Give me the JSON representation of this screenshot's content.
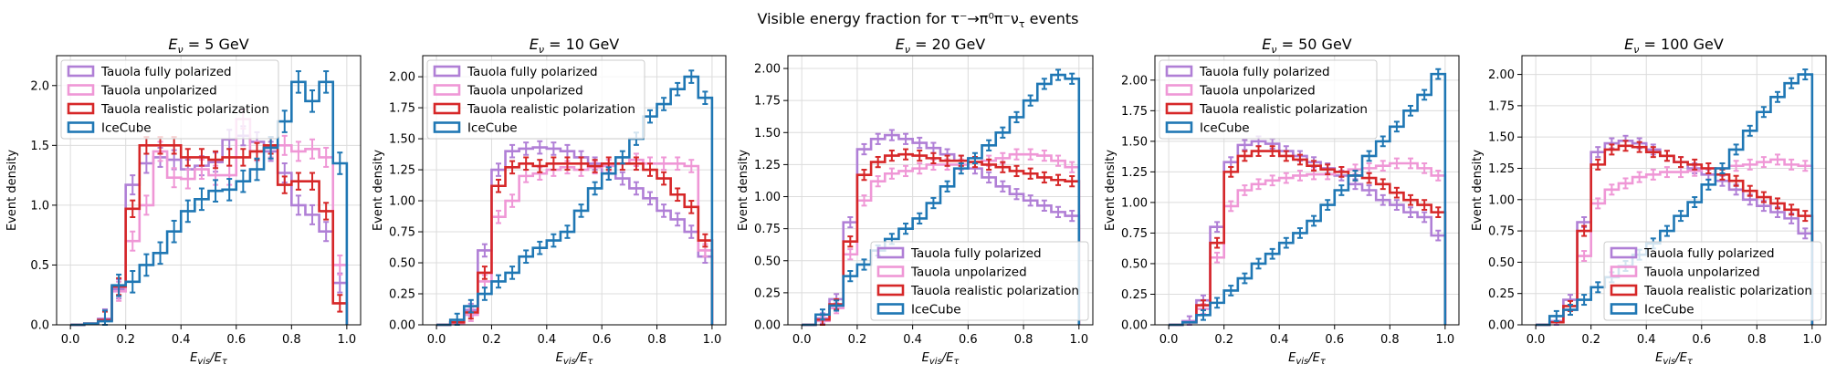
{
  "figure": {
    "suptitle_text": "Visible energy fraction for τ⁻→π⁰π⁻ν",
    "suptitle_sub": "τ",
    "suptitle_tail": " events"
  },
  "colors": {
    "tauola_fully_polarized": "#b07fd6",
    "tauola_unpolarized": "#ef97d6",
    "tauola_realistic": "#d62728",
    "icecube": "#1f77b4"
  },
  "chart_data": [
    {
      "type": "step-histogram",
      "title_main": "E",
      "title_sub": "ν",
      "title_tail": " = 5 GeV",
      "xlabel_main": "E",
      "xlabel_sub1": "vis",
      "xlabel_mid": "/E",
      "xlabel_sub2": "τ",
      "ylabel": "Event density",
      "xlim": [
        -0.05,
        1.05
      ],
      "ylim": [
        0,
        2.25
      ],
      "xticks": [
        "0.0",
        "0.2",
        "0.4",
        "0.6",
        "0.8",
        "1.0"
      ],
      "yticks": [
        "0.0",
        "0.5",
        "1.0",
        "1.5",
        "2.0"
      ],
      "ytick_values": [
        0,
        0.5,
        1.0,
        1.5,
        2.0
      ],
      "legend_loc": "upper left",
      "bin_edges": [
        0.0,
        0.05,
        0.1,
        0.15,
        0.2,
        0.25,
        0.3,
        0.35,
        0.4,
        0.45,
        0.5,
        0.55,
        0.6,
        0.65,
        0.7,
        0.75,
        0.8,
        0.85,
        0.9,
        0.95,
        1.0
      ],
      "series": [
        {
          "name": "Tauola fully polarized",
          "key": "tauola_fully_polarized",
          "values": [
            0,
            0.01,
            0.05,
            0.3,
            1.17,
            1.35,
            1.4,
            1.38,
            1.3,
            1.33,
            1.36,
            1.55,
            1.58,
            1.53,
            1.45,
            1.27,
            1.0,
            0.92,
            0.78,
            0.35
          ],
          "err": 0.08
        },
        {
          "name": "Tauola unpolarized",
          "key": "tauola_unpolarized",
          "values": [
            0,
            0.01,
            0.04,
            0.28,
            0.7,
            1.0,
            1.45,
            1.23,
            1.22,
            1.3,
            1.25,
            1.25,
            1.72,
            1.45,
            1.48,
            1.5,
            1.45,
            1.47,
            1.4,
            0.5
          ],
          "err": 0.08
        },
        {
          "name": "Tauola realistic polarization",
          "key": "tauola_realistic",
          "values": [
            0,
            0.01,
            0.04,
            0.32,
            0.97,
            1.5,
            1.5,
            1.5,
            1.4,
            1.4,
            1.38,
            1.4,
            1.4,
            1.45,
            1.5,
            1.17,
            1.2,
            1.2,
            0.95,
            0.18
          ],
          "err": 0.07
        },
        {
          "name": "IceCube",
          "key": "icecube",
          "values": [
            0,
            0.01,
            0.03,
            0.33,
            0.36,
            0.5,
            0.6,
            0.78,
            0.95,
            1.05,
            1.12,
            1.13,
            1.2,
            1.3,
            1.48,
            1.7,
            2.03,
            1.87,
            2.03,
            1.35
          ],
          "err": 0.09
        }
      ]
    },
    {
      "type": "step-histogram",
      "title_main": "E",
      "title_sub": "ν",
      "title_tail": " = 10 GeV",
      "xlabel_main": "E",
      "xlabel_sub1": "vis",
      "xlabel_mid": "/E",
      "xlabel_sub2": "τ",
      "ylabel": "Event density",
      "xlim": [
        -0.05,
        1.05
      ],
      "ylim": [
        0,
        2.17
      ],
      "xticks": [
        "0.0",
        "0.2",
        "0.4",
        "0.6",
        "0.8",
        "1.0"
      ],
      "yticks": [
        "0.00",
        "0.25",
        "0.50",
        "0.75",
        "1.00",
        "1.25",
        "1.50",
        "1.75",
        "2.00"
      ],
      "ytick_values": [
        0,
        0.25,
        0.5,
        0.75,
        1.0,
        1.25,
        1.5,
        1.75,
        2.0
      ],
      "legend_loc": "upper left",
      "bin_edges": [
        0.0,
        0.05,
        0.1,
        0.15,
        0.2,
        0.25,
        0.3,
        0.35,
        0.4,
        0.45,
        0.5,
        0.55,
        0.6,
        0.65,
        0.7,
        0.75,
        0.8,
        0.85,
        0.9,
        0.95,
        1.0
      ],
      "series": [
        {
          "name": "Tauola fully polarized",
          "key": "tauola_fully_polarized",
          "values": [
            0,
            0.02,
            0.12,
            0.6,
            1.25,
            1.4,
            1.42,
            1.43,
            1.42,
            1.4,
            1.35,
            1.3,
            1.22,
            1.18,
            1.1,
            1.02,
            0.92,
            0.85,
            0.75,
            0.55
          ],
          "err": 0.05
        },
        {
          "name": "Tauola unpolarized",
          "key": "tauola_unpolarized",
          "values": [
            0,
            0.01,
            0.08,
            0.35,
            0.87,
            1.0,
            1.2,
            1.22,
            1.25,
            1.27,
            1.25,
            1.27,
            1.28,
            1.3,
            1.33,
            1.3,
            1.3,
            1.3,
            1.28,
            0.6
          ],
          "err": 0.05
        },
        {
          "name": "Tauola realistic polarization",
          "key": "tauola_realistic",
          "values": [
            0,
            0.02,
            0.1,
            0.42,
            1.12,
            1.27,
            1.3,
            1.28,
            1.3,
            1.3,
            1.3,
            1.28,
            1.3,
            1.3,
            1.3,
            1.25,
            1.18,
            1.05,
            0.95,
            0.68
          ],
          "err": 0.05
        },
        {
          "name": "IceCube",
          "key": "icecube",
          "values": [
            0,
            0.04,
            0.15,
            0.25,
            0.35,
            0.42,
            0.55,
            0.62,
            0.68,
            0.75,
            0.92,
            1.1,
            1.22,
            1.35,
            1.5,
            1.68,
            1.78,
            1.9,
            2.0,
            1.83
          ],
          "err": 0.05
        }
      ]
    },
    {
      "type": "step-histogram",
      "title_main": "E",
      "title_sub": "ν",
      "title_tail": " = 20 GeV",
      "xlabel_main": "E",
      "xlabel_sub1": "vis",
      "xlabel_mid": "/E",
      "xlabel_sub2": "τ",
      "ylabel": "Event density",
      "xlim": [
        -0.05,
        1.05
      ],
      "ylim": [
        0,
        2.1
      ],
      "xticks": [
        "0.0",
        "0.2",
        "0.4",
        "0.6",
        "0.8",
        "1.0"
      ],
      "yticks": [
        "0.00",
        "0.25",
        "0.50",
        "0.75",
        "1.00",
        "1.25",
        "1.50",
        "1.75",
        "2.00"
      ],
      "ytick_values": [
        0,
        0.25,
        0.5,
        0.75,
        1.0,
        1.25,
        1.5,
        1.75,
        2.0
      ],
      "legend_loc": "lower right",
      "bin_edges": [
        0.0,
        0.05,
        0.1,
        0.15,
        0.2,
        0.25,
        0.3,
        0.35,
        0.4,
        0.45,
        0.5,
        0.55,
        0.6,
        0.65,
        0.7,
        0.75,
        0.8,
        0.85,
        0.9,
        0.95,
        1.0
      ],
      "series": [
        {
          "name": "Tauola fully polarized",
          "key": "tauola_fully_polarized",
          "values": [
            0,
            0.05,
            0.2,
            0.8,
            1.37,
            1.45,
            1.48,
            1.45,
            1.42,
            1.38,
            1.33,
            1.28,
            1.22,
            1.15,
            1.08,
            1.02,
            0.97,
            0.93,
            0.88,
            0.85
          ],
          "err": 0.04
        },
        {
          "name": "Tauola unpolarized",
          "key": "tauola_unpolarized",
          "values": [
            0,
            0.03,
            0.13,
            0.55,
            0.97,
            1.12,
            1.18,
            1.2,
            1.22,
            1.25,
            1.25,
            1.25,
            1.27,
            1.28,
            1.3,
            1.33,
            1.33,
            1.32,
            1.28,
            1.23
          ],
          "err": 0.04
        },
        {
          "name": "Tauola realistic polarization",
          "key": "tauola_realistic",
          "values": [
            0,
            0.04,
            0.16,
            0.65,
            1.17,
            1.27,
            1.32,
            1.33,
            1.32,
            1.3,
            1.28,
            1.28,
            1.27,
            1.25,
            1.23,
            1.2,
            1.18,
            1.15,
            1.13,
            1.12
          ],
          "err": 0.04
        },
        {
          "name": "IceCube",
          "key": "icecube",
          "values": [
            0,
            0.08,
            0.15,
            0.38,
            0.47,
            0.58,
            0.67,
            0.75,
            0.83,
            0.95,
            1.08,
            1.22,
            1.3,
            1.4,
            1.5,
            1.62,
            1.75,
            1.88,
            1.95,
            1.92
          ],
          "err": 0.04
        }
      ]
    },
    {
      "type": "step-histogram",
      "title_main": "E",
      "title_sub": "ν",
      "title_tail": " = 50 GeV",
      "xlabel_main": "E",
      "xlabel_sub1": "vis",
      "xlabel_mid": "/E",
      "xlabel_sub2": "τ",
      "ylabel": "Event density",
      "xlim": [
        -0.05,
        1.05
      ],
      "ylim": [
        0,
        2.2
      ],
      "xticks": [
        "0.0",
        "0.2",
        "0.4",
        "0.6",
        "0.8",
        "1.0"
      ],
      "yticks": [
        "0.00",
        "0.25",
        "0.50",
        "0.75",
        "1.00",
        "1.25",
        "1.50",
        "1.75",
        "2.00"
      ],
      "ytick_values": [
        0,
        0.25,
        0.5,
        0.75,
        1.0,
        1.25,
        1.5,
        1.75,
        2.0
      ],
      "legend_loc": "upper left",
      "bin_edges": [
        0.0,
        0.05,
        0.1,
        0.15,
        0.2,
        0.25,
        0.3,
        0.35,
        0.4,
        0.45,
        0.5,
        0.55,
        0.6,
        0.65,
        0.7,
        0.75,
        0.8,
        0.85,
        0.9,
        0.95,
        1.0
      ],
      "series": [
        {
          "name": "Tauola fully polarized",
          "key": "tauola_fully_polarized",
          "values": [
            0,
            0.03,
            0.2,
            0.8,
            1.33,
            1.47,
            1.5,
            1.48,
            1.42,
            1.38,
            1.33,
            1.28,
            1.22,
            1.15,
            1.1,
            1.02,
            0.98,
            0.92,
            0.88,
            0.73
          ],
          "err": 0.04
        },
        {
          "name": "Tauola unpolarized",
          "key": "tauola_unpolarized",
          "values": [
            0,
            0.02,
            0.13,
            0.55,
            0.97,
            1.1,
            1.15,
            1.18,
            1.2,
            1.22,
            1.23,
            1.23,
            1.25,
            1.27,
            1.28,
            1.3,
            1.32,
            1.32,
            1.28,
            1.22
          ],
          "err": 0.04
        },
        {
          "name": "Tauola realistic polarization",
          "key": "tauola_realistic",
          "values": [
            0,
            0.02,
            0.16,
            0.67,
            1.25,
            1.38,
            1.42,
            1.42,
            1.38,
            1.35,
            1.3,
            1.27,
            1.25,
            1.22,
            1.2,
            1.15,
            1.08,
            1.02,
            0.98,
            0.92
          ],
          "err": 0.04
        },
        {
          "name": "IceCube",
          "key": "icecube",
          "values": [
            0,
            0.02,
            0.08,
            0.18,
            0.28,
            0.38,
            0.5,
            0.58,
            0.67,
            0.75,
            0.85,
            0.98,
            1.1,
            1.22,
            1.38,
            1.5,
            1.62,
            1.75,
            1.88,
            2.05
          ],
          "err": 0.04
        }
      ]
    },
    {
      "type": "step-histogram",
      "title_main": "E",
      "title_sub": "ν",
      "title_tail": " = 100 GeV",
      "xlabel_main": "E",
      "xlabel_sub1": "vis",
      "xlabel_mid": "/E",
      "xlabel_sub2": "τ",
      "ylabel": "Event density",
      "xlim": [
        -0.05,
        1.05
      ],
      "ylim": [
        0,
        2.15
      ],
      "xticks": [
        "0.0",
        "0.2",
        "0.4",
        "0.6",
        "0.8",
        "1.0"
      ],
      "yticks": [
        "0.00",
        "0.25",
        "0.50",
        "0.75",
        "1.00",
        "1.25",
        "1.50",
        "1.75",
        "2.00"
      ],
      "ytick_values": [
        0,
        0.25,
        0.5,
        0.75,
        1.0,
        1.25,
        1.5,
        1.75,
        2.0
      ],
      "legend_loc": "lower right",
      "bin_edges": [
        0.0,
        0.05,
        0.1,
        0.15,
        0.2,
        0.25,
        0.3,
        0.35,
        0.4,
        0.45,
        0.5,
        0.55,
        0.6,
        0.65,
        0.7,
        0.75,
        0.8,
        0.85,
        0.9,
        0.95,
        1.0
      ],
      "series": [
        {
          "name": "Tauola fully polarized",
          "key": "tauola_fully_polarized",
          "values": [
            0,
            0.03,
            0.2,
            0.82,
            1.38,
            1.45,
            1.47,
            1.45,
            1.4,
            1.35,
            1.3,
            1.25,
            1.2,
            1.15,
            1.08,
            1.0,
            0.95,
            0.9,
            0.85,
            0.73
          ],
          "err": 0.04
        },
        {
          "name": "Tauola unpolarized",
          "key": "tauola_unpolarized",
          "values": [
            0,
            0.02,
            0.12,
            0.55,
            0.97,
            1.08,
            1.13,
            1.18,
            1.2,
            1.22,
            1.22,
            1.23,
            1.25,
            1.25,
            1.27,
            1.28,
            1.3,
            1.32,
            1.28,
            1.27
          ],
          "err": 0.04
        },
        {
          "name": "Tauola realistic polarization",
          "key": "tauola_realistic",
          "values": [
            0,
            0.02,
            0.15,
            0.75,
            1.28,
            1.4,
            1.43,
            1.42,
            1.38,
            1.35,
            1.3,
            1.28,
            1.25,
            1.2,
            1.15,
            1.07,
            1.02,
            0.97,
            0.92,
            0.87
          ],
          "err": 0.04
        },
        {
          "name": "IceCube",
          "key": "icecube",
          "values": [
            0,
            0.07,
            0.12,
            0.2,
            0.3,
            0.38,
            0.47,
            0.56,
            0.65,
            0.75,
            0.87,
            0.98,
            1.12,
            1.25,
            1.4,
            1.55,
            1.7,
            1.82,
            1.93,
            2.0
          ],
          "err": 0.04
        }
      ]
    }
  ]
}
